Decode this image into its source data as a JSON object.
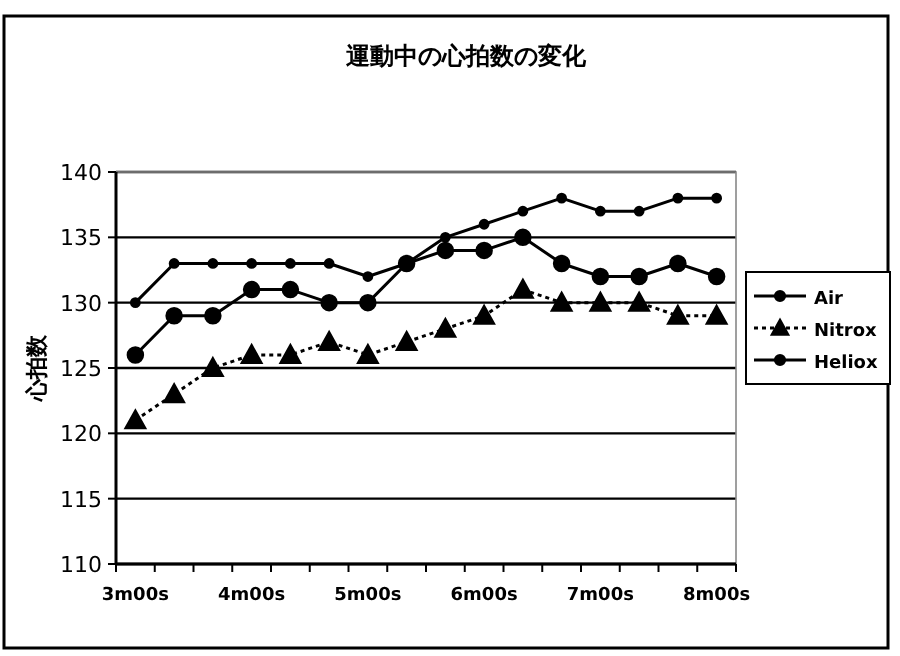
{
  "chart_data": {
    "type": "line",
    "title": "運動中の心拍数の変化",
    "ylabel": "心拍数",
    "categories": [
      "3m00s",
      null,
      null,
      "4m00s",
      null,
      null,
      "5m00s",
      null,
      null,
      "6m00s",
      null,
      null,
      "7m00s",
      null,
      null,
      "8m00s"
    ],
    "series": [
      {
        "name": "Air",
        "color": "#000000",
        "marker": "circle",
        "line_style": "solid",
        "values": [
          126,
          129,
          129,
          131,
          131,
          130,
          130,
          133,
          134,
          134,
          135,
          133,
          132,
          132,
          133,
          132
        ]
      },
      {
        "name": "Nitrox",
        "color": "#000000",
        "marker": "triangle",
        "line_style": "dotted",
        "values": [
          121,
          123,
          125,
          126,
          126,
          127,
          126,
          127,
          128,
          129,
          131,
          130,
          130,
          130,
          129,
          129
        ]
      },
      {
        "name": "Heliox",
        "color": "#000000",
        "marker": "circle",
        "line_style": "solid",
        "values": [
          130,
          133,
          133,
          133,
          133,
          133,
          132,
          133,
          135,
          136,
          137,
          138,
          137,
          137,
          138,
          138
        ]
      }
    ],
    "ylim": [
      110,
      140
    ],
    "yticks": [
      110,
      115,
      120,
      125,
      130,
      135,
      140
    ],
    "grid": "y",
    "legend": "right"
  }
}
